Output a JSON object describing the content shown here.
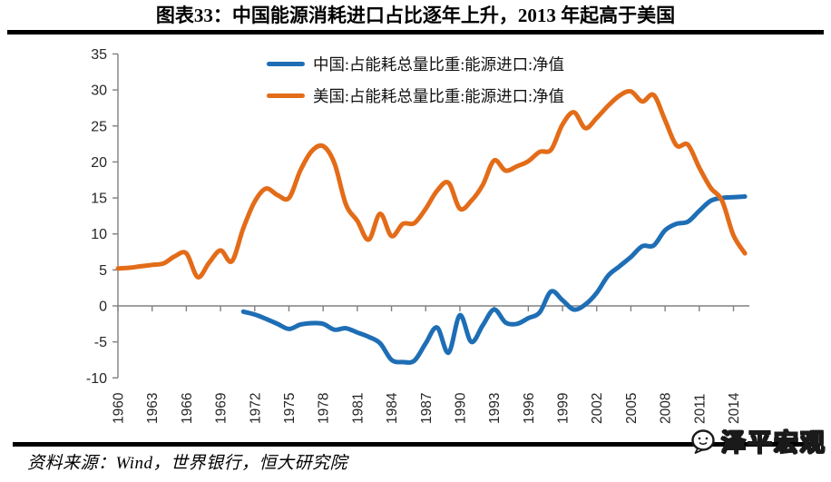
{
  "page": {
    "title": "图表33：中国能源消耗进口占比逐年上升，2013 年起高于美国",
    "source": "资料来源：Wind，世界银行，恒大研究院",
    "watermark": "泽平宏观"
  },
  "icons": {
    "logo": "zeping-macro-logo-icon"
  },
  "chart_data": {
    "type": "line",
    "title": "图表33：中国能源消耗进口占比逐年上升，2013 年起高于美国",
    "xlabel": "",
    "ylabel": "",
    "ylim": [
      -10,
      35
    ],
    "y_ticks": [
      -10,
      -5,
      0,
      5,
      10,
      15,
      20,
      25,
      30,
      35
    ],
    "x_ticks": [
      1960,
      1963,
      1966,
      1969,
      1972,
      1975,
      1978,
      1981,
      1984,
      1987,
      1990,
      1993,
      1996,
      1999,
      2002,
      2005,
      2008,
      2011,
      2014
    ],
    "grid": false,
    "legend_position": "top-center",
    "axis_color": "#808080",
    "tick_label_color": "#262626",
    "series": [
      {
        "name": "中国:占能耗总量比重:能源进口:净值",
        "color": "#1E6EB5",
        "x": [
          1971,
          1972,
          1973,
          1974,
          1975,
          1976,
          1977,
          1978,
          1979,
          1980,
          1981,
          1982,
          1983,
          1984,
          1985,
          1986,
          1987,
          1988,
          1989,
          1990,
          1991,
          1992,
          1993,
          1994,
          1995,
          1996,
          1997,
          1998,
          1999,
          2000,
          2001,
          2002,
          2003,
          2004,
          2005,
          2006,
          2007,
          2008,
          2009,
          2010,
          2011,
          2012,
          2013,
          2014,
          2015
        ],
        "values": [
          -0.8,
          -1.2,
          -1.8,
          -2.5,
          -3.2,
          -2.6,
          -2.4,
          -2.5,
          -3.3,
          -3.1,
          -3.7,
          -4.3,
          -5.2,
          -7.5,
          -7.8,
          -7.6,
          -5.2,
          -3.0,
          -6.5,
          -1.3,
          -5.0,
          -2.7,
          -0.5,
          -2.3,
          -2.5,
          -1.7,
          -0.9,
          2.0,
          0.8,
          -0.5,
          0.2,
          1.8,
          4.2,
          5.5,
          6.8,
          8.3,
          8.4,
          10.5,
          11.4,
          11.7,
          13.2,
          14.6,
          15.0,
          15.1,
          15.2
        ]
      },
      {
        "name": "美国:占能耗总量比重:能源进口:净值",
        "color": "#E36C19",
        "x": [
          1960,
          1961,
          1962,
          1963,
          1964,
          1965,
          1966,
          1967,
          1968,
          1969,
          1970,
          1971,
          1972,
          1973,
          1974,
          1975,
          1976,
          1977,
          1978,
          1979,
          1980,
          1981,
          1982,
          1983,
          1984,
          1985,
          1986,
          1987,
          1988,
          1989,
          1990,
          1991,
          1992,
          1993,
          1994,
          1995,
          1996,
          1997,
          1998,
          1999,
          2000,
          2001,
          2002,
          2003,
          2004,
          2005,
          2006,
          2007,
          2008,
          2009,
          2010,
          2011,
          2012,
          2013,
          2014,
          2015
        ],
        "values": [
          5.2,
          5.3,
          5.5,
          5.7,
          5.9,
          6.9,
          7.3,
          4.0,
          6.0,
          7.7,
          6.2,
          10.8,
          14.5,
          16.3,
          15.4,
          15.0,
          18.8,
          21.5,
          22.2,
          19.8,
          14.1,
          11.8,
          9.2,
          12.8,
          9.7,
          11.4,
          11.5,
          13.5,
          16.0,
          17.1,
          13.5,
          14.6,
          16.8,
          20.2,
          18.8,
          19.4,
          20.1,
          21.4,
          21.7,
          25.2,
          26.9,
          24.7,
          26.1,
          27.8,
          29.2,
          29.8,
          28.4,
          29.3,
          25.8,
          22.3,
          22.4,
          19.2,
          16.4,
          14.6,
          9.8,
          7.3
        ]
      }
    ]
  }
}
